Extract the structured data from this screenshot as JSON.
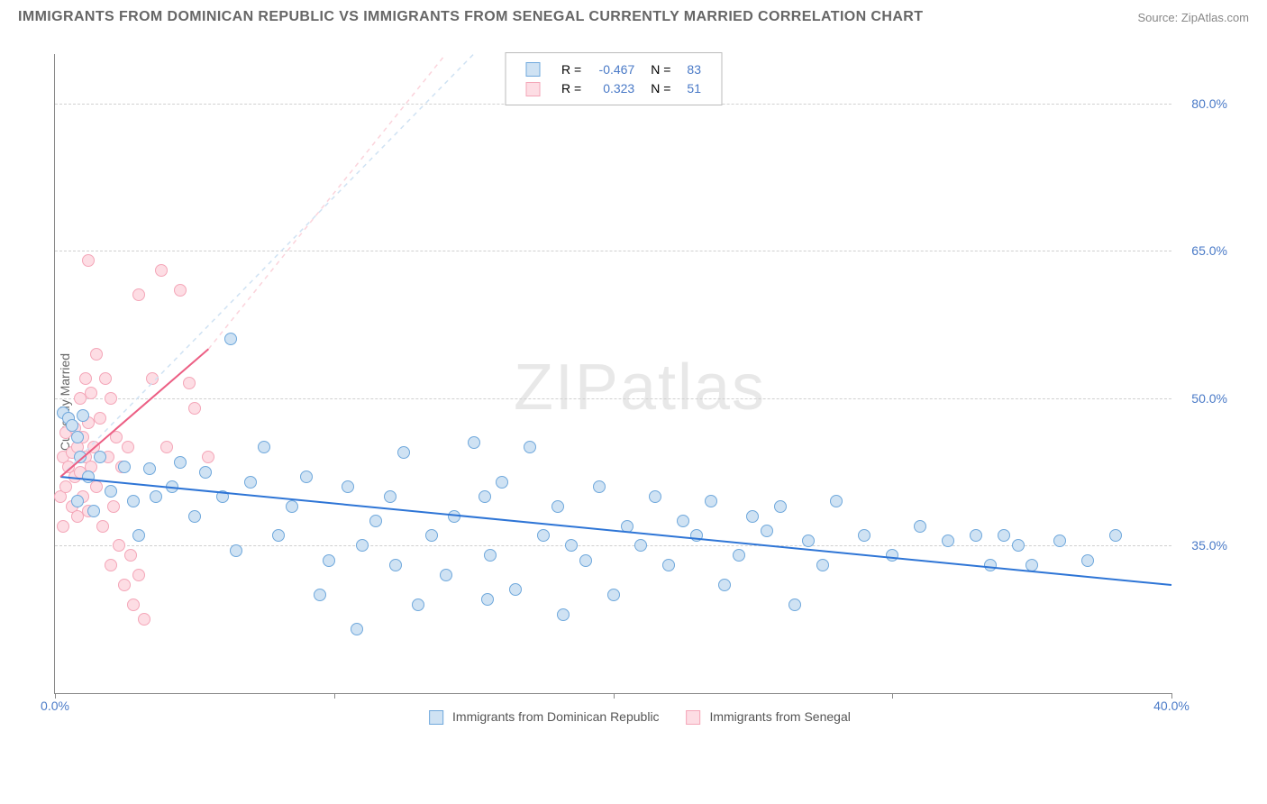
{
  "header": {
    "title": "IMMIGRANTS FROM DOMINICAN REPUBLIC VS IMMIGRANTS FROM SENEGAL CURRENTLY MARRIED CORRELATION CHART",
    "source": "Source: ZipAtlas.com"
  },
  "watermark": {
    "part1": "ZIP",
    "part2": "atlas"
  },
  "chart": {
    "type": "scatter",
    "ylabel": "Currently Married",
    "xlim": [
      0,
      40
    ],
    "ylim": [
      20,
      85
    ],
    "y_ticks": [
      35.0,
      50.0,
      65.0,
      80.0
    ],
    "y_tick_labels": [
      "35.0%",
      "50.0%",
      "65.0%",
      "80.0%"
    ],
    "x_ticks": [
      0,
      10,
      20,
      30,
      40
    ],
    "x_tick_labels": [
      "0.0%",
      "",
      "",
      "",
      "40.0%"
    ],
    "background_color": "#ffffff",
    "grid_color": "#d0d0d0",
    "axis_color": "#888888",
    "tick_label_color": "#4a7ac7",
    "marker_radius": 7,
    "series": [
      {
        "name": "Immigrants from Dominican Republic",
        "marker_fill": "#cfe2f3",
        "marker_stroke": "#6fa8dc",
        "line_color": "#2e75d6",
        "line_width": 2,
        "line_dash": "none",
        "R": "-0.467",
        "N": "83",
        "trend": {
          "x1": 0.2,
          "y1": 42.0,
          "x2": 40.0,
          "y2": 31.0
        },
        "diag_dash": {
          "x1": 0.2,
          "y1": 42.0,
          "x2": 15.0,
          "y2": 85.0,
          "color": "#cfe2f3"
        },
        "points": [
          [
            0.3,
            48.5
          ],
          [
            0.5,
            48.0
          ],
          [
            0.6,
            47.2
          ],
          [
            0.8,
            46.0
          ],
          [
            0.8,
            39.5
          ],
          [
            0.9,
            44.0
          ],
          [
            1.0,
            48.2
          ],
          [
            1.2,
            42.0
          ],
          [
            1.4,
            38.5
          ],
          [
            1.6,
            44.0
          ],
          [
            2.0,
            40.5
          ],
          [
            2.5,
            43.0
          ],
          [
            2.8,
            39.5
          ],
          [
            3.0,
            36.0
          ],
          [
            3.4,
            42.8
          ],
          [
            3.6,
            40.0
          ],
          [
            4.2,
            41.0
          ],
          [
            4.5,
            43.5
          ],
          [
            5.0,
            38.0
          ],
          [
            5.4,
            42.5
          ],
          [
            6.0,
            40.0
          ],
          [
            6.3,
            56.0
          ],
          [
            6.5,
            34.5
          ],
          [
            7.0,
            41.5
          ],
          [
            7.5,
            45.0
          ],
          [
            8.0,
            36.0
          ],
          [
            8.5,
            39.0
          ],
          [
            9.0,
            42.0
          ],
          [
            9.5,
            30.0
          ],
          [
            9.8,
            33.5
          ],
          [
            10.5,
            41.0
          ],
          [
            10.8,
            26.5
          ],
          [
            11.0,
            35.0
          ],
          [
            11.5,
            37.5
          ],
          [
            12.0,
            40.0
          ],
          [
            12.2,
            33.0
          ],
          [
            12.5,
            44.5
          ],
          [
            13.0,
            29.0
          ],
          [
            13.5,
            36.0
          ],
          [
            14.0,
            32.0
          ],
          [
            14.3,
            38.0
          ],
          [
            15.0,
            45.5
          ],
          [
            15.4,
            40.0
          ],
          [
            15.5,
            29.5
          ],
          [
            15.6,
            34.0
          ],
          [
            16.0,
            41.5
          ],
          [
            16.5,
            30.5
          ],
          [
            17.0,
            45.0
          ],
          [
            17.5,
            36.0
          ],
          [
            18.0,
            39.0
          ],
          [
            18.2,
            28.0
          ],
          [
            18.5,
            35.0
          ],
          [
            19.0,
            33.5
          ],
          [
            19.5,
            41.0
          ],
          [
            20.0,
            30.0
          ],
          [
            20.5,
            37.0
          ],
          [
            21.0,
            35.0
          ],
          [
            21.5,
            40.0
          ],
          [
            22.0,
            33.0
          ],
          [
            22.5,
            37.5
          ],
          [
            23.0,
            36.0
          ],
          [
            23.5,
            39.5
          ],
          [
            24.0,
            31.0
          ],
          [
            24.5,
            34.0
          ],
          [
            25.0,
            38.0
          ],
          [
            25.5,
            36.5
          ],
          [
            26.0,
            39.0
          ],
          [
            26.5,
            29.0
          ],
          [
            27.0,
            35.5
          ],
          [
            27.5,
            33.0
          ],
          [
            28.0,
            39.5
          ],
          [
            29.0,
            36.0
          ],
          [
            30.0,
            34.0
          ],
          [
            31.0,
            37.0
          ],
          [
            32.0,
            35.5
          ],
          [
            33.0,
            36.0
          ],
          [
            33.5,
            33.0
          ],
          [
            34.0,
            36.0
          ],
          [
            34.5,
            35.0
          ],
          [
            35.0,
            33.0
          ],
          [
            36.0,
            35.5
          ],
          [
            37.0,
            33.5
          ],
          [
            38.0,
            36.0
          ]
        ]
      },
      {
        "name": "Immigrants from Senegal",
        "marker_fill": "#fddde4",
        "marker_stroke": "#f4a6b8",
        "line_color": "#ec5f84",
        "line_width": 2,
        "line_dash": "none",
        "R": "0.323",
        "N": "51",
        "trend": {
          "x1": 0.2,
          "y1": 42.0,
          "x2": 5.5,
          "y2": 55.0
        },
        "diag_dash": {
          "x1": 5.5,
          "y1": 55.0,
          "x2": 14.0,
          "y2": 85.0,
          "color": "#fbd3db"
        },
        "points": [
          [
            0.2,
            40.0
          ],
          [
            0.3,
            44.0
          ],
          [
            0.3,
            37.0
          ],
          [
            0.4,
            46.5
          ],
          [
            0.4,
            41.0
          ],
          [
            0.5,
            43.0
          ],
          [
            0.5,
            48.0
          ],
          [
            0.6,
            39.0
          ],
          [
            0.6,
            44.5
          ],
          [
            0.7,
            42.0
          ],
          [
            0.7,
            47.0
          ],
          [
            0.8,
            38.0
          ],
          [
            0.8,
            45.0
          ],
          [
            0.9,
            50.0
          ],
          [
            0.9,
            42.5
          ],
          [
            1.0,
            40.0
          ],
          [
            1.0,
            46.0
          ],
          [
            1.1,
            44.0
          ],
          [
            1.1,
            52.0
          ],
          [
            1.2,
            38.5
          ],
          [
            1.2,
            47.5
          ],
          [
            1.3,
            43.0
          ],
          [
            1.3,
            50.5
          ],
          [
            1.4,
            45.0
          ],
          [
            1.5,
            54.5
          ],
          [
            1.5,
            41.0
          ],
          [
            1.6,
            48.0
          ],
          [
            1.7,
            37.0
          ],
          [
            1.8,
            52.0
          ],
          [
            1.9,
            44.0
          ],
          [
            2.0,
            33.0
          ],
          [
            2.0,
            50.0
          ],
          [
            2.1,
            39.0
          ],
          [
            2.2,
            46.0
          ],
          [
            2.3,
            35.0
          ],
          [
            2.4,
            43.0
          ],
          [
            2.5,
            31.0
          ],
          [
            2.6,
            45.0
          ],
          [
            2.7,
            34.0
          ],
          [
            2.8,
            29.0
          ],
          [
            3.0,
            32.0
          ],
          [
            3.0,
            60.5
          ],
          [
            3.2,
            27.5
          ],
          [
            3.5,
            52.0
          ],
          [
            3.8,
            63.0
          ],
          [
            4.0,
            45.0
          ],
          [
            4.5,
            61.0
          ],
          [
            4.8,
            51.5
          ],
          [
            5.0,
            49.0
          ],
          [
            5.5,
            44.0
          ],
          [
            1.2,
            64.0
          ]
        ]
      }
    ]
  },
  "legend_top": {
    "r_label": "R =",
    "n_label": "N ="
  },
  "legend_bottom": {
    "series1": "Immigrants from Dominican Republic",
    "series2": "Immigrants from Senegal"
  }
}
